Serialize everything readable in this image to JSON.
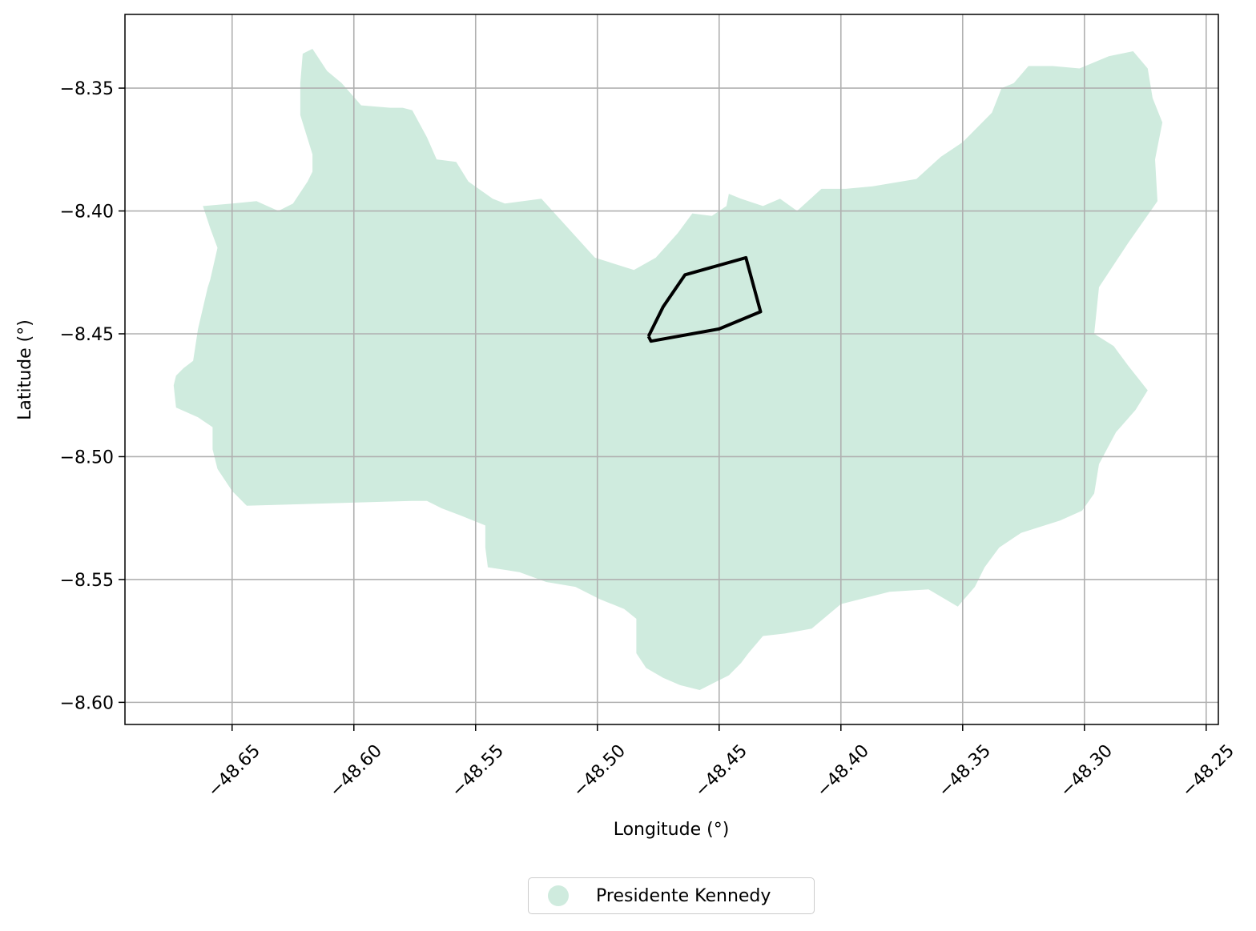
{
  "chart_data": {
    "type": "map",
    "xlabel": "Longitude (°)",
    "ylabel": "Latitude (°)",
    "xlim": [
      -48.694,
      -48.245
    ],
    "ylim": [
      -8.609,
      -8.32
    ],
    "xticks": [
      -48.65,
      -48.6,
      -48.55,
      -48.5,
      -48.45,
      -48.4,
      -48.35,
      -48.3,
      -48.25
    ],
    "xtick_labels": [
      "−48.65",
      "−48.60",
      "−48.55",
      "−48.50",
      "−48.45",
      "−48.40",
      "−48.35",
      "−48.30",
      "−48.25"
    ],
    "yticks": [
      -8.35,
      -8.4,
      -8.45,
      -8.5,
      -8.55,
      -8.6
    ],
    "ytick_labels": [
      "−8.35",
      "−8.40",
      "−8.45",
      "−8.50",
      "−8.55",
      "−8.60"
    ],
    "grid": true,
    "legend_placement": "bottom-center",
    "legend": [
      {
        "label": "Presidente Kennedy",
        "color": "#cfebde"
      }
    ],
    "municipality_boundary": [
      [
        -48.662,
        -8.398
      ],
      [
        -48.65,
        -8.397
      ],
      [
        -48.64,
        -8.396
      ],
      [
        -48.631,
        -8.4
      ],
      [
        -48.625,
        -8.397
      ],
      [
        -48.619,
        -8.388
      ],
      [
        -48.617,
        -8.384
      ],
      [
        -48.617,
        -8.377
      ],
      [
        -48.622,
        -8.361
      ],
      [
        -48.622,
        -8.348
      ],
      [
        -48.621,
        -8.336
      ],
      [
        -48.617,
        -8.334
      ],
      [
        -48.611,
        -8.343
      ],
      [
        -48.605,
        -8.348
      ],
      [
        -48.597,
        -8.357
      ],
      [
        -48.585,
        -8.358
      ],
      [
        -48.58,
        -8.358
      ],
      [
        -48.576,
        -8.359
      ],
      [
        -48.57,
        -8.37
      ],
      [
        -48.566,
        -8.379
      ],
      [
        -48.558,
        -8.38
      ],
      [
        -48.553,
        -8.388
      ],
      [
        -48.543,
        -8.395
      ],
      [
        -48.538,
        -8.397
      ],
      [
        -48.523,
        -8.395
      ],
      [
        -48.501,
        -8.419
      ],
      [
        -48.485,
        -8.424
      ],
      [
        -48.476,
        -8.419
      ],
      [
        -48.467,
        -8.409
      ],
      [
        -48.461,
        -8.401
      ],
      [
        -48.453,
        -8.402
      ],
      [
        -48.447,
        -8.398
      ],
      [
        -48.446,
        -8.393
      ],
      [
        -48.441,
        -8.395
      ],
      [
        -48.432,
        -8.398
      ],
      [
        -48.425,
        -8.395
      ],
      [
        -48.418,
        -8.4
      ],
      [
        -48.408,
        -8.391
      ],
      [
        -48.398,
        -8.391
      ],
      [
        -48.387,
        -8.39
      ],
      [
        -48.369,
        -8.387
      ],
      [
        -48.359,
        -8.378
      ],
      [
        -48.35,
        -8.372
      ],
      [
        -48.338,
        -8.36
      ],
      [
        -48.334,
        -8.35
      ],
      [
        -48.329,
        -8.348
      ],
      [
        -48.323,
        -8.341
      ],
      [
        -48.313,
        -8.341
      ],
      [
        -48.302,
        -8.342
      ],
      [
        -48.29,
        -8.337
      ],
      [
        -48.28,
        -8.335
      ],
      [
        -48.274,
        -8.342
      ],
      [
        -48.272,
        -8.354
      ],
      [
        -48.268,
        -8.364
      ],
      [
        -48.271,
        -8.379
      ],
      [
        -48.27,
        -8.396
      ],
      [
        -48.282,
        -8.413
      ],
      [
        -48.294,
        -8.431
      ],
      [
        -48.296,
        -8.45
      ],
      [
        -48.288,
        -8.455
      ],
      [
        -48.282,
        -8.463
      ],
      [
        -48.274,
        -8.473
      ],
      [
        -48.279,
        -8.481
      ],
      [
        -48.287,
        -8.49
      ],
      [
        -48.294,
        -8.503
      ],
      [
        -48.296,
        -8.515
      ],
      [
        -48.301,
        -8.522
      ],
      [
        -48.31,
        -8.526
      ],
      [
        -48.326,
        -8.531
      ],
      [
        -48.335,
        -8.537
      ],
      [
        -48.341,
        -8.545
      ],
      [
        -48.345,
        -8.553
      ],
      [
        -48.352,
        -8.561
      ],
      [
        -48.364,
        -8.554
      ],
      [
        -48.38,
        -8.555
      ],
      [
        -48.4,
        -8.56
      ],
      [
        -48.412,
        -8.57
      ],
      [
        -48.423,
        -8.572
      ],
      [
        -48.432,
        -8.573
      ],
      [
        -48.438,
        -8.58
      ],
      [
        -48.441,
        -8.584
      ],
      [
        -48.446,
        -8.589
      ],
      [
        -48.452,
        -8.592
      ],
      [
        -48.458,
        -8.595
      ],
      [
        -48.466,
        -8.593
      ],
      [
        -48.473,
        -8.59
      ],
      [
        -48.48,
        -8.586
      ],
      [
        -48.484,
        -8.58
      ],
      [
        -48.484,
        -8.566
      ],
      [
        -48.489,
        -8.562
      ],
      [
        -48.499,
        -8.558
      ],
      [
        -48.509,
        -8.553
      ],
      [
        -48.521,
        -8.551
      ],
      [
        -48.532,
        -8.547
      ],
      [
        -48.545,
        -8.545
      ],
      [
        -48.546,
        -8.537
      ],
      [
        -48.546,
        -8.528
      ],
      [
        -48.551,
        -8.526
      ],
      [
        -48.556,
        -8.524
      ],
      [
        -48.564,
        -8.521
      ],
      [
        -48.57,
        -8.518
      ],
      [
        -48.576,
        -8.518
      ],
      [
        -48.644,
        -8.52
      ],
      [
        -48.65,
        -8.514
      ],
      [
        -48.656,
        -8.505
      ],
      [
        -48.658,
        -8.497
      ],
      [
        -48.658,
        -8.488
      ],
      [
        -48.664,
        -8.484
      ],
      [
        -48.673,
        -8.48
      ],
      [
        -48.674,
        -8.471
      ],
      [
        -48.673,
        -8.467
      ],
      [
        -48.67,
        -8.464
      ],
      [
        -48.666,
        -8.461
      ],
      [
        -48.664,
        -8.448
      ],
      [
        -48.66,
        -8.431
      ],
      [
        -48.659,
        -8.428
      ],
      [
        -48.656,
        -8.415
      ],
      [
        -48.659,
        -8.407
      ],
      [
        -48.662,
        -8.398
      ]
    ],
    "highlight_polygon": [
      [
        -48.479,
        -8.451
      ],
      [
        -48.473,
        -8.439
      ],
      [
        -48.464,
        -8.426
      ],
      [
        -48.439,
        -8.419
      ],
      [
        -48.433,
        -8.441
      ],
      [
        -48.45,
        -8.448
      ],
      [
        -48.478,
        -8.453
      ],
      [
        -48.479,
        -8.451
      ]
    ]
  }
}
